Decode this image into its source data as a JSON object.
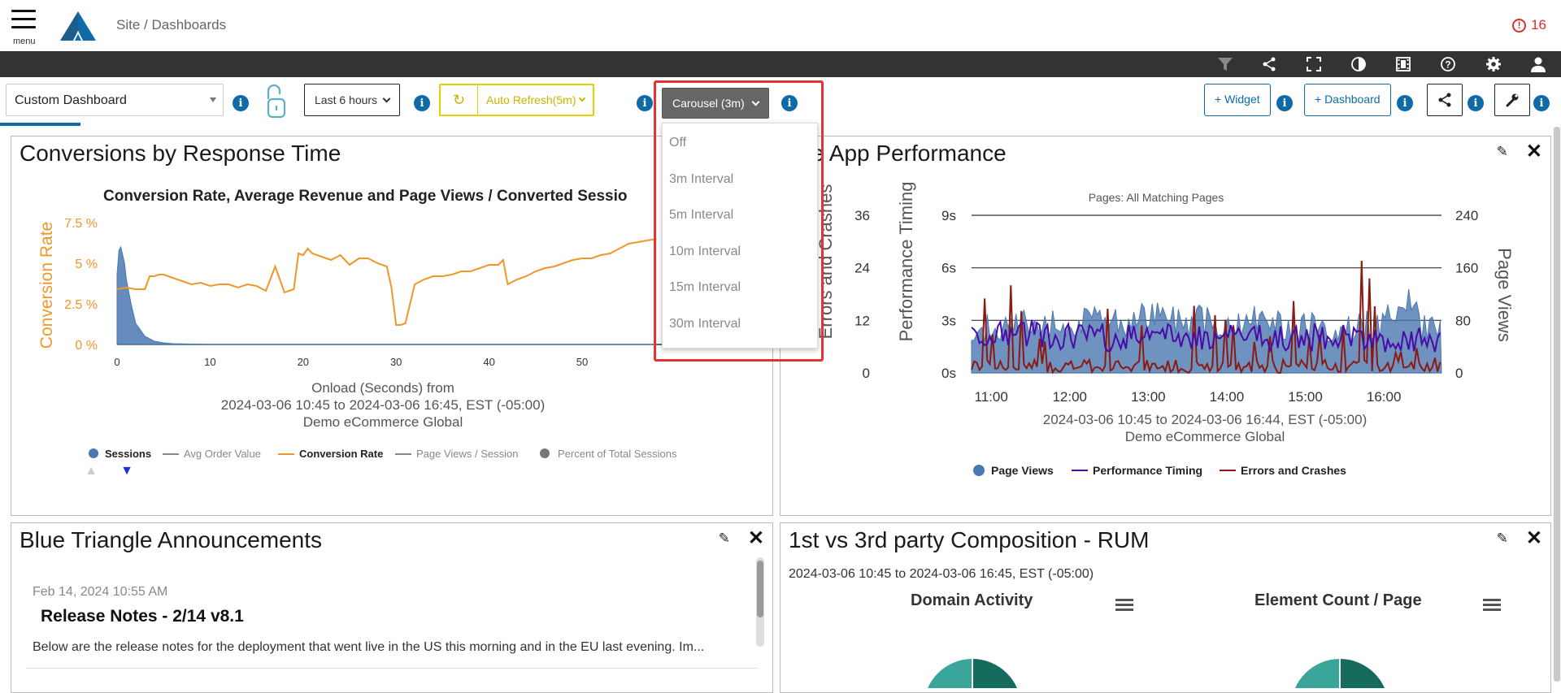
{
  "nav": {
    "menu_label": "menu",
    "breadcrumb": "Site / Dashboards",
    "alert_count": "16",
    "alert_glyph": "!"
  },
  "toolbar_icons": [
    "filter-icon",
    "share-icon",
    "fullscreen-icon",
    "contrast-icon",
    "film-icon",
    "help-icon",
    "settings-icon",
    "user-icon"
  ],
  "controls": {
    "dashboard_select": "Custom Dashboard",
    "time_range": "Last 6 hours",
    "refresh_glyph": "↻",
    "auto_refresh": "Auto Refresh(5m)",
    "carousel": "Carousel (3m)",
    "add_widget": "+ Widget",
    "add_dashboard": "+ Dashboard",
    "info_glyph": "i"
  },
  "carousel_menu": {
    "options": [
      "Off",
      "3m Interval",
      "5m Interval",
      "10m Interval",
      "15m Interval",
      "30m Interval"
    ]
  },
  "colors": {
    "brand_blue": "#0e6ba8",
    "orange": "#f0962a",
    "sessions_blue": "#4a78b0",
    "purple": "#4b0aa8",
    "dark_red": "#8b1a10",
    "highlight_red": "#e53333",
    "teal": "#3aa59a",
    "dark_teal": "#156b5c"
  },
  "widgets": {
    "conversions": {
      "title": "Conversions by Response Time",
      "chart_title": "Conversion Rate, Average Revenue and Page Views / Converted Sessio",
      "ylabel": "Conversion Rate",
      "yticks": [
        "7.5 %",
        "5 %",
        "2.5 %",
        "0 %"
      ],
      "xticks": [
        "0",
        "10",
        "20",
        "30",
        "40",
        "50"
      ],
      "xlabel_lines": [
        "Onload (Seconds) from",
        "2024-03-06 10:45 to 2024-03-06 16:45, EST (-05:00)",
        "Demo eCommerce Global"
      ],
      "legend": [
        "Sessions",
        "Avg Order Value",
        "Conversion Rate",
        "Page Views / Session",
        "Percent of Total Sessions"
      ],
      "up_arrow": "▲",
      "down_arrow": "▼"
    },
    "native_app": {
      "title": "tive App Performance",
      "subtitle": "Pages: All Matching Pages",
      "y_left1_label": "Errors and Crashes",
      "y_left1_ticks": [
        "36",
        "24",
        "12",
        "0"
      ],
      "y_left2_label": "Performance Timing",
      "y_left2_ticks": [
        "9s",
        "6s",
        "3s",
        "0s"
      ],
      "y_right_label": "Page Views",
      "y_right_ticks": [
        "240",
        "160",
        "80",
        "0"
      ],
      "xticks": [
        "11:00",
        "12:00",
        "13:00",
        "14:00",
        "15:00",
        "16:00"
      ],
      "xlabel_lines": [
        "2024-03-06 10:45 to 2024-03-06 16:44, EST (-05:00)",
        "Demo eCommerce Global"
      ],
      "legend": [
        "Page Views",
        "Performance Timing",
        "Errors and Crashes"
      ]
    },
    "announcements": {
      "title": "Blue Triangle Announcements",
      "date": "Feb 14, 2024 10:55 AM",
      "headline": "Release Notes - 2/14 v8.1",
      "body": "Below are the release notes for the deployment that went live in the US this morning and in the EU last evening. Im..."
    },
    "composition": {
      "title": "1st vs 3rd party Composition - RUM",
      "range": "2024-03-06 10:45 to 2024-03-06 16:45, EST (-05:00)",
      "chart1": "Domain Activity",
      "chart2": "Element Count / Page"
    }
  },
  "chart_data": [
    {
      "type": "line",
      "title": "Conversion Rate, Average Revenue and Page Views / Converted Sessio",
      "xlabel": "Onload (Seconds) from",
      "ylabel": "Conversion Rate",
      "ylim": [
        0,
        7.5
      ],
      "xlim": [
        0,
        58
      ],
      "series": [
        {
          "name": "Conversion Rate",
          "x": [
            0,
            1,
            2,
            3,
            3.5,
            4,
            4.5,
            5,
            6,
            7,
            8,
            9,
            10,
            11,
            12,
            13,
            14,
            15,
            16,
            17,
            18,
            19,
            19.5,
            20,
            20.5,
            21,
            22,
            23,
            24,
            25,
            26,
            27,
            28,
            29,
            29.5,
            30,
            30.5,
            31,
            32,
            33,
            34,
            35,
            36,
            37,
            38,
            39,
            40,
            41,
            41.5,
            42,
            43,
            44,
            45,
            46,
            47,
            48,
            49,
            50,
            51,
            52,
            53,
            54,
            55,
            56,
            57,
            58
          ],
          "y": [
            3.4,
            3.5,
            3.4,
            3.4,
            4.2,
            4.2,
            4.3,
            4.3,
            4.1,
            3.9,
            3.7,
            3.8,
            3.6,
            3.7,
            3.7,
            3.5,
            3.7,
            3.6,
            3.3,
            4.8,
            3.2,
            3.4,
            5.6,
            5.5,
            5.9,
            5.6,
            5.4,
            5.2,
            5.5,
            4.9,
            5.3,
            5.3,
            5.0,
            4.8,
            3.5,
            1.2,
            1.2,
            1.3,
            3.7,
            4.0,
            4.2,
            4.2,
            4.3,
            4.5,
            4.5,
            4.7,
            4.9,
            4.9,
            5.2,
            3.7,
            4.0,
            4.2,
            4.5,
            4.7,
            4.8,
            5.0,
            5.2,
            5.3,
            5.3,
            5.5,
            5.6,
            5.9,
            6.2,
            6.3,
            6.4,
            6.5
          ]
        },
        {
          "name": "Sessions",
          "x": [
            0,
            0.2,
            0.4,
            0.6,
            0.8,
            1,
            1.5,
            2,
            3,
            4,
            5,
            6,
            10,
            20,
            30,
            40,
            50,
            58
          ],
          "y": [
            4.3,
            5.8,
            6.0,
            5.5,
            5.0,
            4.0,
            2.5,
            1.3,
            0.5,
            0.2,
            0.1,
            0.05,
            0,
            0,
            0,
            0,
            0,
            0
          ]
        }
      ]
    },
    {
      "type": "line",
      "title": "Pages: All Matching Pages",
      "xlabel": "2024-03-06 10:45 to 2024-03-06 16:44, EST (-05:00)",
      "ylabel": "Performance Timing",
      "x_range": [
        "10:45",
        "16:44"
      ],
      "series": [
        {
          "name": "Page Views",
          "x": [
            "10:45",
            "11:00",
            "11:30",
            "12:00",
            "12:30",
            "13:00",
            "13:30",
            "14:00",
            "14:30",
            "15:00",
            "15:30",
            "16:00",
            "16:15",
            "16:30",
            "16:44"
          ],
          "y": [
            50,
            70,
            75,
            80,
            75,
            85,
            80,
            75,
            80,
            70,
            65,
            75,
            120,
            70,
            65
          ]
        },
        {
          "name": "Performance Timing",
          "x": [
            "10:45",
            "11:00",
            "11:30",
            "12:00",
            "12:30",
            "13:00",
            "13:30",
            "14:00",
            "14:30",
            "15:00",
            "15:30",
            "16:00",
            "16:30",
            "16:44"
          ],
          "y": [
            2.5,
            2.2,
            2.3,
            2.1,
            2.0,
            2.2,
            2.0,
            2.3,
            2.1,
            2.0,
            2.2,
            1.8,
            1.9,
            1.6
          ]
        },
        {
          "name": "Errors and Crashes",
          "x": [
            "10:45",
            "10:50",
            "11:00",
            "11:15",
            "11:30",
            "12:00",
            "12:30",
            "13:00",
            "13:15",
            "13:20",
            "13:30",
            "14:00",
            "14:30",
            "14:45",
            "15:00",
            "15:30",
            "15:45",
            "16:00",
            "16:30",
            "16:44"
          ],
          "y": [
            0,
            26,
            8,
            20,
            9,
            4,
            15,
            10,
            24,
            35,
            16,
            12,
            5,
            22,
            8,
            10,
            28,
            4,
            6,
            2
          ]
        }
      ]
    }
  ]
}
